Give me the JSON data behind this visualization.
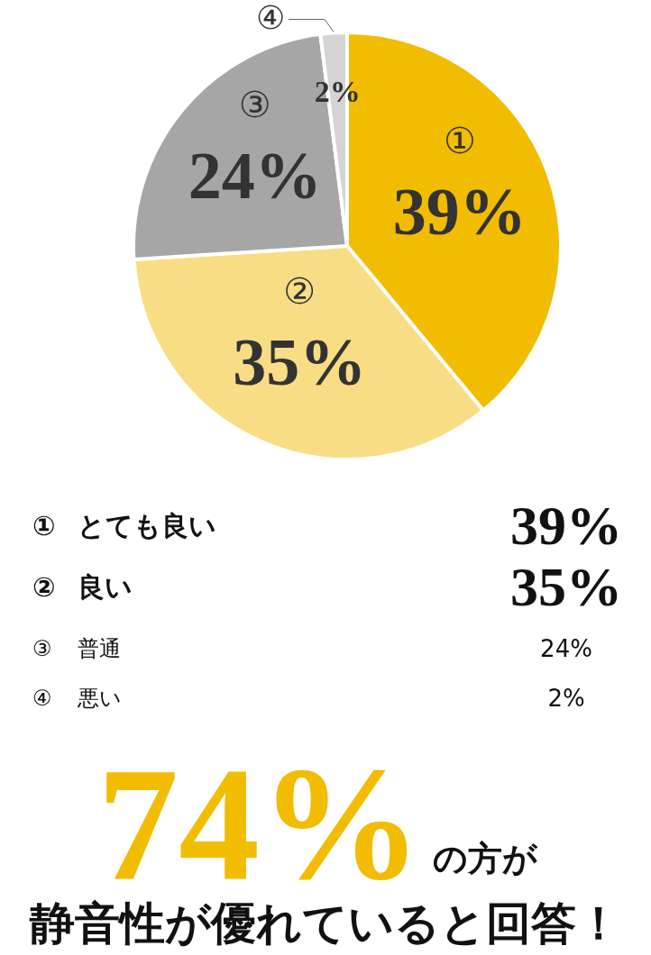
{
  "chart_data": {
    "type": "pie",
    "categories": [
      "①",
      "②",
      "③",
      "④"
    ],
    "values": [
      39,
      35,
      24,
      2
    ],
    "value_labels": [
      "39%",
      "35%",
      "24%",
      "2%"
    ],
    "colors": [
      "#f2bc00",
      "#f8dd85",
      "#a6a6a6",
      "#d4d4d4"
    ],
    "annotations": [
      "とても良い",
      "良い",
      "普通",
      "悪い",
      "74%",
      "の方が",
      "静音性が優れていると回答！"
    ]
  }
}
